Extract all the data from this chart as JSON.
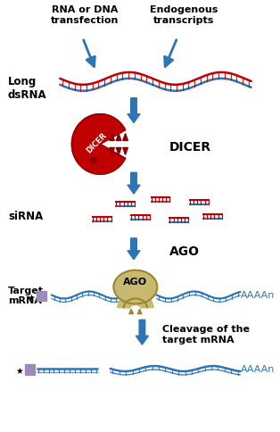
{
  "bg_color": "#ffffff",
  "blue_color": "#2E75B6",
  "red_color": "#C00000",
  "dark_red": "#8B0000",
  "ago_body_color": "#C8B870",
  "ago_edge_color": "#9B8830",
  "purple_box_color": "#9B8BBB",
  "text_color": "#000000",
  "arrow1_text": "RNA or DNA\ntransfection",
  "arrow2_text": "Endogenous\ntranscripts",
  "long_dsrna_label": "Long\ndsRNA",
  "dicer_label": "DICER",
  "sirna_label": "siRNA",
  "ago_label": "AGO",
  "target_mrna_label": "Target\nmRNA",
  "cleavage_label": "Cleavage of the\ntarget mRNA",
  "aaaaN_label": "AAAAn",
  "fig_w": 3.14,
  "fig_h": 4.85,
  "dpi": 100
}
